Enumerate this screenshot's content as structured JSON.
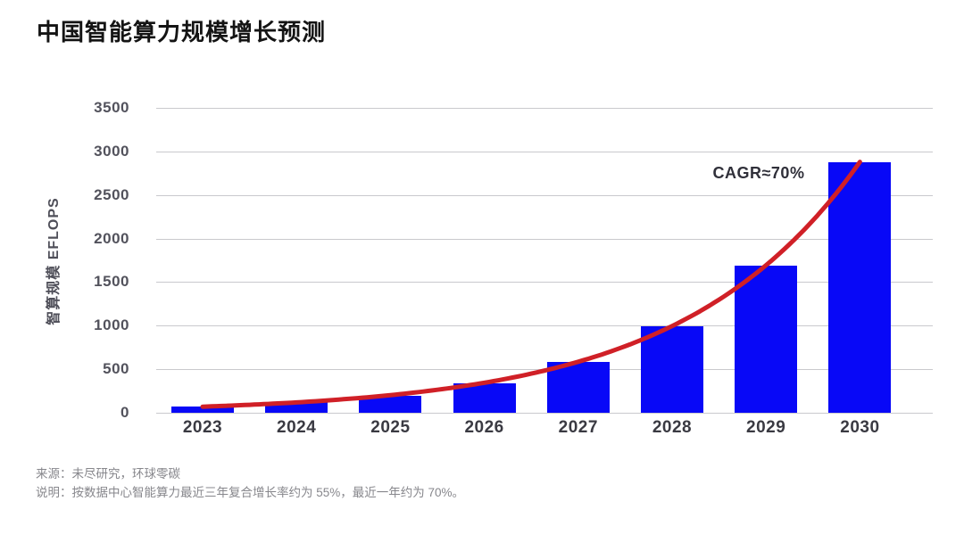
{
  "title": "中国智能算力规模增长预测",
  "chart_data": {
    "type": "bar",
    "title": "中国智能算力规模增长预测",
    "categories": [
      "2023",
      "2024",
      "2025",
      "2026",
      "2027",
      "2028",
      "2029",
      "2030"
    ],
    "values": [
      70,
      120,
      200,
      340,
      580,
      990,
      1690,
      2880
    ],
    "xlabel": "",
    "ylabel": "智算规模 EFLOPS",
    "ylim": [
      0,
      3500
    ],
    "y_ticks": [
      0,
      500,
      1000,
      1500,
      2000,
      2500,
      3000,
      3500
    ],
    "grid": "horizontal",
    "legend": "none",
    "bar_color": "#0808f7",
    "trend_line": {
      "type": "exponential",
      "color": "#d02027",
      "annotation": "CAGR≈70%"
    }
  },
  "footer": {
    "source": "来源：未尽研究，环球零碳",
    "note": "说明：按数据中心智能算力最近三年复合增长率约为 55%，最近一年约为 70%。"
  }
}
